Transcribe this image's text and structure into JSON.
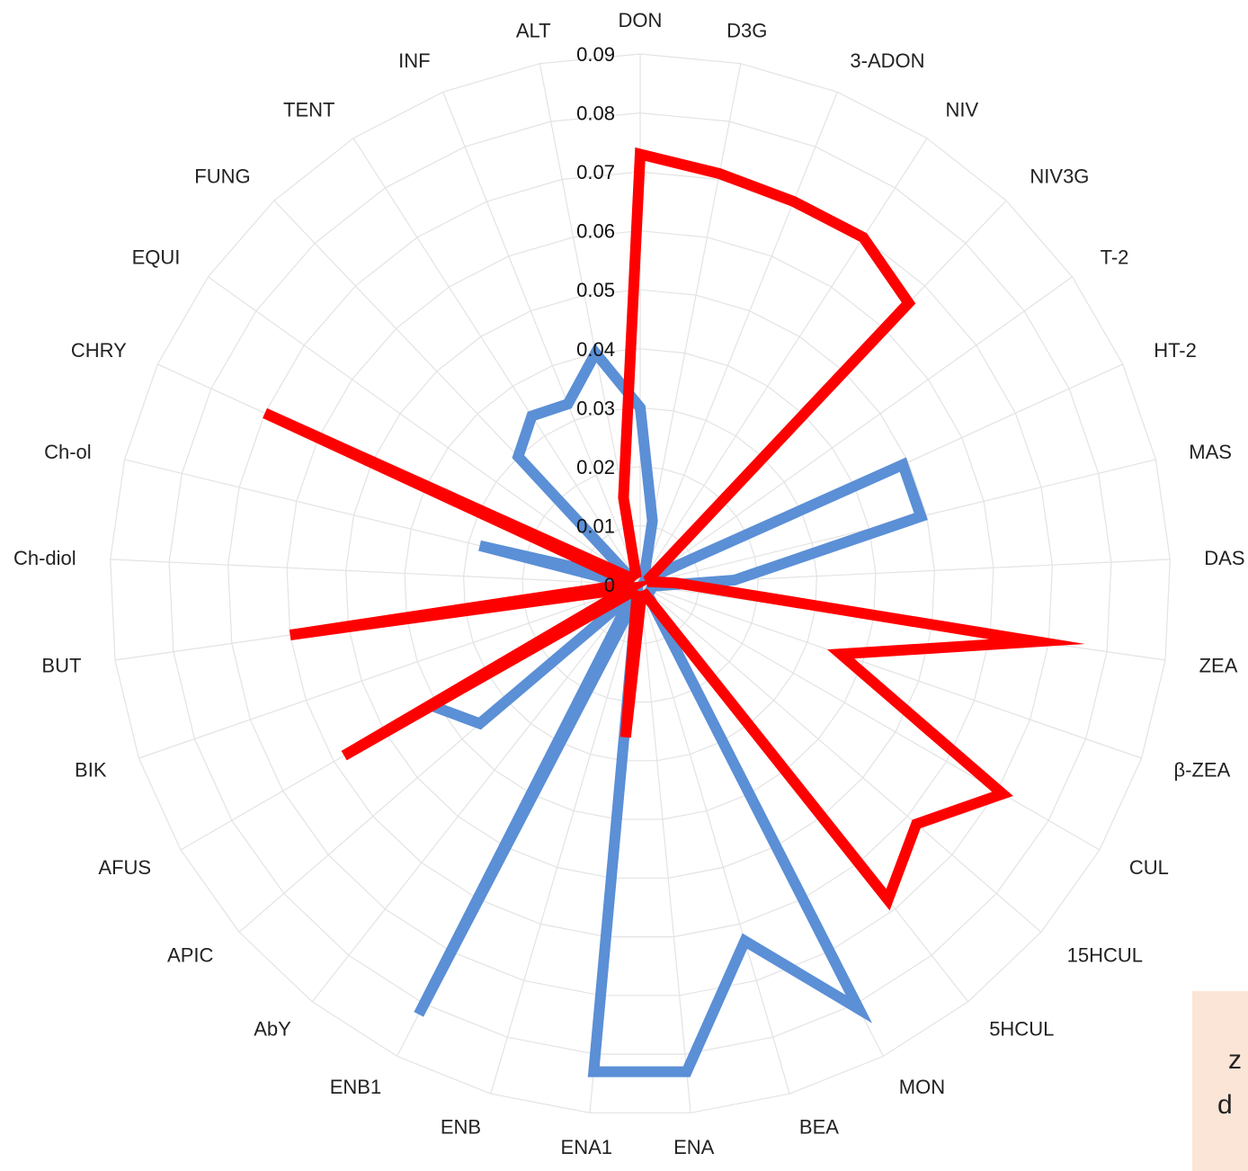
{
  "chart_data": {
    "type": "radar",
    "axes": [
      "DON",
      "D3G",
      "3-ADON",
      "NIV",
      "NIV3G",
      "T-2",
      "HT-2",
      "MAS",
      "DAS",
      "ZEA",
      "β-ZEA",
      "CUL",
      "15HCUL",
      "5HCUL",
      "MON",
      "BEA",
      "ENA",
      "ENA1",
      "ENB",
      "ENB1",
      "AbY",
      "APIC",
      "AFUS",
      "BIK",
      "BUT",
      "Ch-diol",
      "Ch-ol",
      "CHRY",
      "EQUI",
      "FUNG",
      "TENT",
      "INF",
      "ALT"
    ],
    "r_ticks": [
      "0",
      "0.01",
      "0.02",
      "0.03",
      "0.04",
      "0.05",
      "0.06",
      "0.07",
      "0.08",
      "0.09"
    ],
    "r_range": [
      0,
      0.09
    ],
    "grid": true,
    "series": [
      {
        "color": "#5b8fd6",
        "values": [
          0.03,
          0.011,
          0.002,
          0.002,
          0.002,
          0.002,
          0.049,
          0.049,
          0.016,
          0.002,
          0.002,
          0.002,
          0.002,
          0.002,
          0.081,
          0.063,
          0.083,
          0.083,
          0.002,
          0.082,
          0.002,
          0.036,
          0.041,
          0.002,
          0.002,
          0.002,
          0.028,
          0.002,
          0.002,
          0.03,
          0.034,
          0.033,
          0.04
        ]
      },
      {
        "color": "#ff0000",
        "values": [
          0.073,
          0.071,
          0.07,
          0.07,
          0.066,
          0.002,
          0.002,
          0.002,
          0.006,
          0.068,
          0.036,
          0.071,
          0.062,
          0.068,
          0.002,
          0.002,
          0.002,
          0.026,
          0.002,
          0.002,
          0.002,
          0.002,
          0.058,
          0.002,
          0.06,
          0.002,
          0.002,
          0.07,
          0.002,
          0.002,
          0.002,
          0.002,
          0.015
        ]
      }
    ]
  },
  "legend": {
    "line1": "z",
    "line2": "d"
  }
}
